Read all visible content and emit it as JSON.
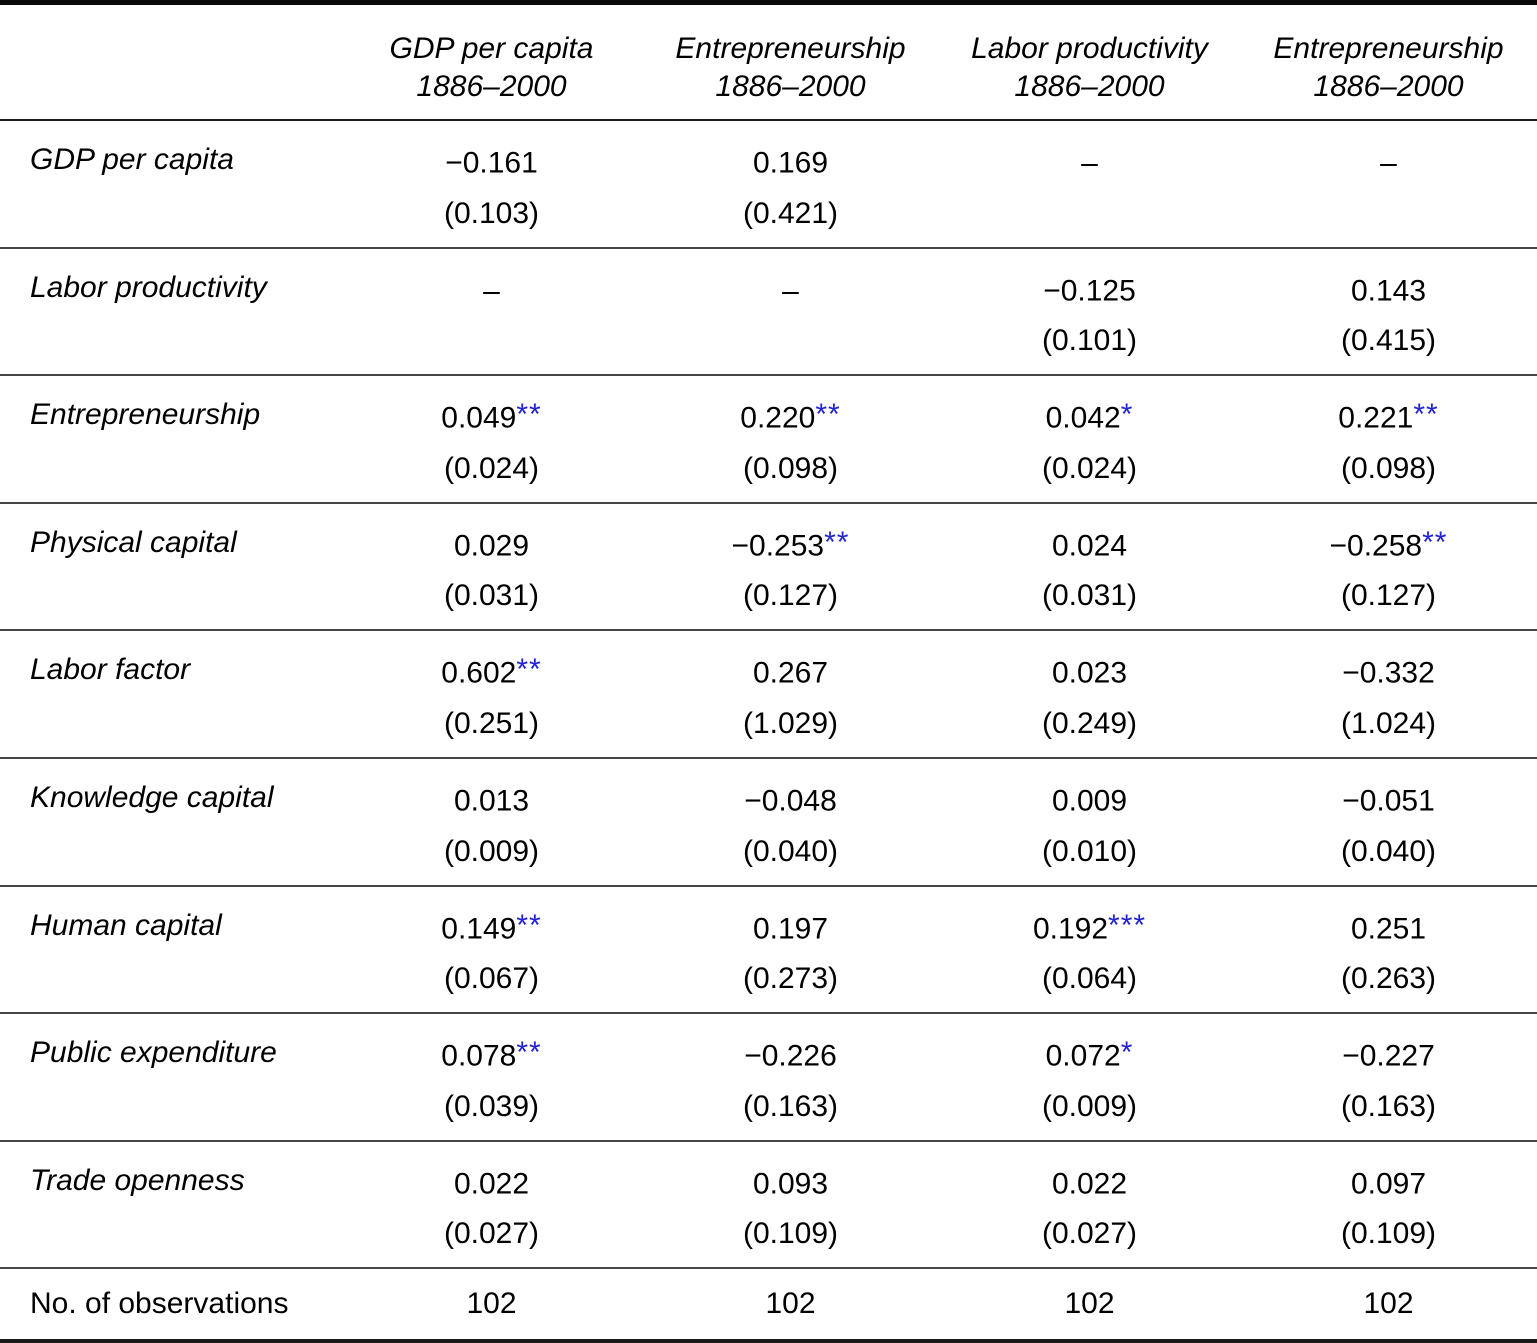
{
  "colors": {
    "stars": "#2424cf",
    "text": "#000000",
    "rule": "#454545"
  },
  "table": {
    "columns": [
      {
        "title": "GDP per capita",
        "period": "1886–2000"
      },
      {
        "title": "Entrepreneurship",
        "period": "1886–2000"
      },
      {
        "title": "Labor productivity",
        "period": "1886–2000"
      },
      {
        "title": "Entrepreneurship",
        "period": "1886–2000"
      }
    ],
    "rows": [
      {
        "label": "GDP per capita",
        "cells": [
          {
            "value": "−0.161",
            "stars": "",
            "se": "(0.103)"
          },
          {
            "value": "0.169",
            "stars": "",
            "se": "(0.421)"
          },
          {
            "value": "–",
            "stars": "",
            "se": ""
          },
          {
            "value": "–",
            "stars": "",
            "se": ""
          }
        ]
      },
      {
        "label": "Labor productivity",
        "cells": [
          {
            "value": "–",
            "stars": "",
            "se": ""
          },
          {
            "value": "–",
            "stars": "",
            "se": ""
          },
          {
            "value": "−0.125",
            "stars": "",
            "se": "(0.101)"
          },
          {
            "value": "0.143",
            "stars": "",
            "se": "(0.415)"
          }
        ]
      },
      {
        "label": "Entrepreneurship",
        "cells": [
          {
            "value": "0.049",
            "stars": "**",
            "se": "(0.024)"
          },
          {
            "value": "0.220",
            "stars": "**",
            "se": "(0.098)"
          },
          {
            "value": "0.042",
            "stars": "*",
            "se": "(0.024)"
          },
          {
            "value": "0.221",
            "stars": "**",
            "se": "(0.098)"
          }
        ]
      },
      {
        "label": "Physical capital",
        "cells": [
          {
            "value": "0.029",
            "stars": "",
            "se": "(0.031)"
          },
          {
            "value": "−0.253",
            "stars": "**",
            "se": "(0.127)"
          },
          {
            "value": "0.024",
            "stars": "",
            "se": "(0.031)"
          },
          {
            "value": "−0.258",
            "stars": "**",
            "se": "(0.127)"
          }
        ]
      },
      {
        "label": "Labor factor",
        "cells": [
          {
            "value": "0.602",
            "stars": "**",
            "se": "(0.251)"
          },
          {
            "value": "0.267",
            "stars": "",
            "se": "(1.029)"
          },
          {
            "value": "0.023",
            "stars": "",
            "se": "(0.249)"
          },
          {
            "value": "−0.332",
            "stars": "",
            "se": "(1.024)"
          }
        ]
      },
      {
        "label": "Knowledge capital",
        "cells": [
          {
            "value": "0.013",
            "stars": "",
            "se": "(0.009)"
          },
          {
            "value": "−0.048",
            "stars": "",
            "se": "(0.040)"
          },
          {
            "value": "0.009",
            "stars": "",
            "se": "(0.010)"
          },
          {
            "value": "−0.051",
            "stars": "",
            "se": "(0.040)"
          }
        ]
      },
      {
        "label": "Human capital",
        "cells": [
          {
            "value": "0.149",
            "stars": "**",
            "se": "(0.067)"
          },
          {
            "value": "0.197",
            "stars": "",
            "se": "(0.273)"
          },
          {
            "value": "0.192",
            "stars": "***",
            "se": "(0.064)"
          },
          {
            "value": "0.251",
            "stars": "",
            "se": "(0.263)"
          }
        ]
      },
      {
        "label": "Public expenditure",
        "cells": [
          {
            "value": "0.078",
            "stars": "**",
            "se": "(0.039)"
          },
          {
            "value": "−0.226",
            "stars": "",
            "se": "(0.163)"
          },
          {
            "value": "0.072",
            "stars": "*",
            "se": "(0.009)"
          },
          {
            "value": "−0.227",
            "stars": "",
            "se": "(0.163)"
          }
        ]
      },
      {
        "label": "Trade openness",
        "cells": [
          {
            "value": "0.022",
            "stars": "",
            "se": "(0.027)"
          },
          {
            "value": "0.093",
            "stars": "",
            "se": "(0.109)"
          },
          {
            "value": "0.022",
            "stars": "",
            "se": "(0.027)"
          },
          {
            "value": "0.097",
            "stars": "",
            "se": "(0.109)"
          }
        ]
      }
    ],
    "observations": {
      "label": "No. of observations",
      "values": [
        "102",
        "102",
        "102",
        "102"
      ]
    }
  }
}
